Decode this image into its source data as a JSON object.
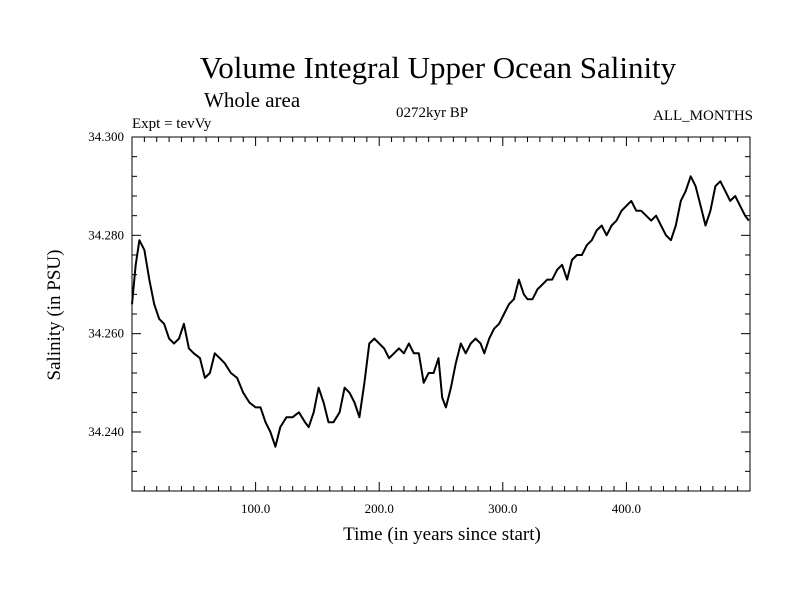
{
  "chart_data": {
    "type": "line",
    "title": "Volume Integral Upper Ocean Salinity",
    "subtitle": "Whole area",
    "experiment": "Expt = tevVy",
    "period": "0272kyr BP",
    "months": "ALL_MONTHS",
    "xlabel": "Time (in years since start)",
    "ylabel": "Salinity (in PSU)",
    "xlim": [
      0,
      500
    ],
    "ylim": [
      34.228,
      34.3
    ],
    "x_ticks": [
      100,
      200,
      300,
      400
    ],
    "x_tick_labels": [
      "100.0",
      "200.0",
      "300.0",
      "400.0"
    ],
    "y_ticks": [
      34.24,
      34.26,
      34.28,
      34.3
    ],
    "y_tick_labels": [
      "34.240",
      "34.260",
      "34.280",
      "34.300"
    ],
    "grid": false,
    "series": [
      {
        "color": "#000000",
        "points": [
          [
            0,
            34.266
          ],
          [
            3,
            34.274
          ],
          [
            6,
            34.279
          ],
          [
            10,
            34.277
          ],
          [
            14,
            34.271
          ],
          [
            18,
            34.266
          ],
          [
            22,
            34.263
          ],
          [
            26,
            34.262
          ],
          [
            30,
            34.259
          ],
          [
            34,
            34.258
          ],
          [
            38,
            34.259
          ],
          [
            42,
            34.262
          ],
          [
            46,
            34.257
          ],
          [
            50,
            34.256
          ],
          [
            55,
            34.255
          ],
          [
            59,
            34.251
          ],
          [
            63,
            34.252
          ],
          [
            67,
            34.256
          ],
          [
            71,
            34.255
          ],
          [
            75,
            34.254
          ],
          [
            80,
            34.252
          ],
          [
            85,
            34.251
          ],
          [
            90,
            34.248
          ],
          [
            95,
            34.246
          ],
          [
            100,
            34.245
          ],
          [
            104,
            34.245
          ],
          [
            108,
            34.242
          ],
          [
            112,
            34.24
          ],
          [
            116,
            34.237
          ],
          [
            120,
            34.241
          ],
          [
            125,
            34.243
          ],
          [
            130,
            34.243
          ],
          [
            135,
            34.244
          ],
          [
            140,
            34.242
          ],
          [
            143,
            34.241
          ],
          [
            147,
            34.244
          ],
          [
            151,
            34.249
          ],
          [
            155,
            34.246
          ],
          [
            159,
            34.242
          ],
          [
            163,
            34.242
          ],
          [
            168,
            34.244
          ],
          [
            172,
            34.249
          ],
          [
            176,
            34.248
          ],
          [
            180,
            34.246
          ],
          [
            184,
            34.243
          ],
          [
            188,
            34.25
          ],
          [
            192,
            34.258
          ],
          [
            196,
            34.259
          ],
          [
            200,
            34.258
          ],
          [
            204,
            34.257
          ],
          [
            208,
            34.255
          ],
          [
            212,
            34.256
          ],
          [
            216,
            34.257
          ],
          [
            220,
            34.256
          ],
          [
            224,
            34.258
          ],
          [
            228,
            34.256
          ],
          [
            232,
            34.256
          ],
          [
            236,
            34.25
          ],
          [
            240,
            34.252
          ],
          [
            244,
            34.252
          ],
          [
            248,
            34.255
          ],
          [
            251,
            34.247
          ],
          [
            254,
            34.245
          ],
          [
            258,
            34.249
          ],
          [
            262,
            34.254
          ],
          [
            266,
            34.258
          ],
          [
            270,
            34.256
          ],
          [
            274,
            34.258
          ],
          [
            278,
            34.259
          ],
          [
            282,
            34.258
          ],
          [
            285,
            34.256
          ],
          [
            289,
            34.259
          ],
          [
            293,
            34.261
          ],
          [
            297,
            34.262
          ],
          [
            301,
            34.264
          ],
          [
            305,
            34.266
          ],
          [
            309,
            34.267
          ],
          [
            313,
            34.271
          ],
          [
            317,
            34.268
          ],
          [
            320,
            34.267
          ],
          [
            324,
            34.267
          ],
          [
            328,
            34.269
          ],
          [
            332,
            34.27
          ],
          [
            336,
            34.271
          ],
          [
            340,
            34.271
          ],
          [
            344,
            34.273
          ],
          [
            348,
            34.274
          ],
          [
            352,
            34.271
          ],
          [
            356,
            34.275
          ],
          [
            360,
            34.276
          ],
          [
            364,
            34.276
          ],
          [
            368,
            34.278
          ],
          [
            372,
            34.279
          ],
          [
            376,
            34.281
          ],
          [
            380,
            34.282
          ],
          [
            384,
            34.28
          ],
          [
            388,
            34.282
          ],
          [
            392,
            34.283
          ],
          [
            396,
            34.285
          ],
          [
            400,
            34.286
          ],
          [
            404,
            34.287
          ],
          [
            408,
            34.285
          ],
          [
            412,
            34.285
          ],
          [
            416,
            34.284
          ],
          [
            420,
            34.283
          ],
          [
            424,
            34.284
          ],
          [
            428,
            34.282
          ],
          [
            432,
            34.28
          ],
          [
            436,
            34.279
          ],
          [
            440,
            34.282
          ],
          [
            444,
            34.287
          ],
          [
            448,
            34.289
          ],
          [
            452,
            34.292
          ],
          [
            456,
            34.29
          ],
          [
            460,
            34.286
          ],
          [
            464,
            34.282
          ],
          [
            468,
            34.285
          ],
          [
            472,
            34.29
          ],
          [
            476,
            34.291
          ],
          [
            480,
            34.289
          ],
          [
            484,
            34.287
          ],
          [
            488,
            34.288
          ],
          [
            492,
            34.286
          ],
          [
            496,
            34.284
          ],
          [
            499,
            34.283
          ]
        ]
      }
    ]
  }
}
